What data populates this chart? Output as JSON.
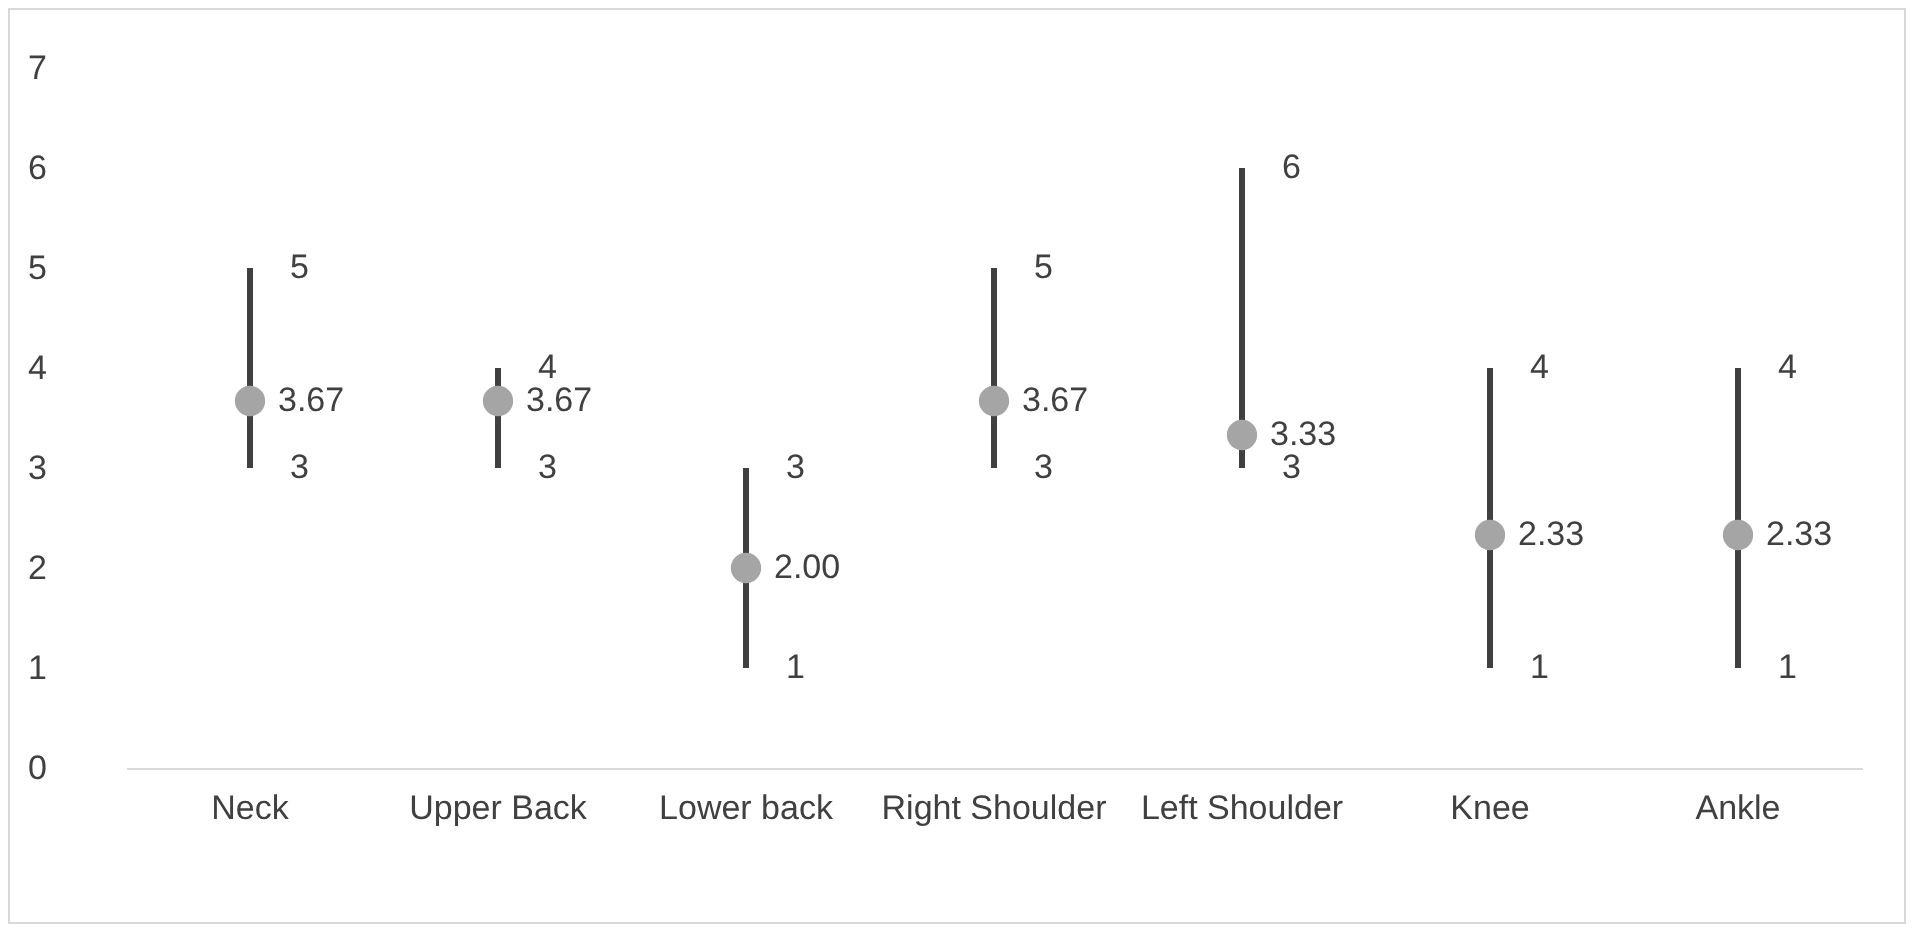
{
  "chart_data": {
    "type": "scatter",
    "categories": [
      "Neck",
      "Upper Back",
      "Lower back",
      "Right Shoulder",
      "Left Shoulder",
      "Knee",
      "Ankle"
    ],
    "series": [
      {
        "color": "#a5a5a5",
        "values": [
          3.67,
          3.67,
          2.0,
          3.67,
          3.33,
          2.33,
          2.33
        ],
        "errors": [
          [
            3,
            5
          ],
          [
            3,
            4
          ],
          [
            1,
            3
          ],
          [
            3,
            5
          ],
          [
            3,
            6
          ],
          [
            1,
            4
          ],
          [
            1,
            4
          ]
        ],
        "value_labels": [
          "3.67",
          "3.67",
          "2.00",
          "3.67",
          "3.33",
          "2.33",
          "2.33"
        ]
      }
    ],
    "annotations": [
      {
        "text": "5",
        "x": "Neck",
        "y": 5
      },
      {
        "text": "3",
        "x": "Neck",
        "y": 3
      },
      {
        "text": "4",
        "x": "Upper Back",
        "y": 4
      },
      {
        "text": "3",
        "x": "Upper Back",
        "y": 3
      },
      {
        "text": "3",
        "x": "Lower back",
        "y": 3
      },
      {
        "text": "1",
        "x": "Lower back",
        "y": 1
      },
      {
        "text": "5",
        "x": "Right Shoulder",
        "y": 5
      },
      {
        "text": "3",
        "x": "Right Shoulder",
        "y": 3
      },
      {
        "text": "6",
        "x": "Left Shoulder",
        "y": 6
      },
      {
        "text": "3",
        "x": "Left Shoulder",
        "y": 3
      },
      {
        "text": "4",
        "x": "Knee",
        "y": 4
      },
      {
        "text": "1",
        "x": "Knee",
        "y": 1
      },
      {
        "text": "4",
        "x": "Ankle",
        "y": 4
      },
      {
        "text": "1",
        "x": "Ankle",
        "y": 1
      }
    ],
    "ylim": [
      0,
      7
    ],
    "yticks": [
      0,
      1,
      2,
      3,
      4,
      5,
      6,
      7
    ],
    "grid": false,
    "marker": "circle"
  }
}
